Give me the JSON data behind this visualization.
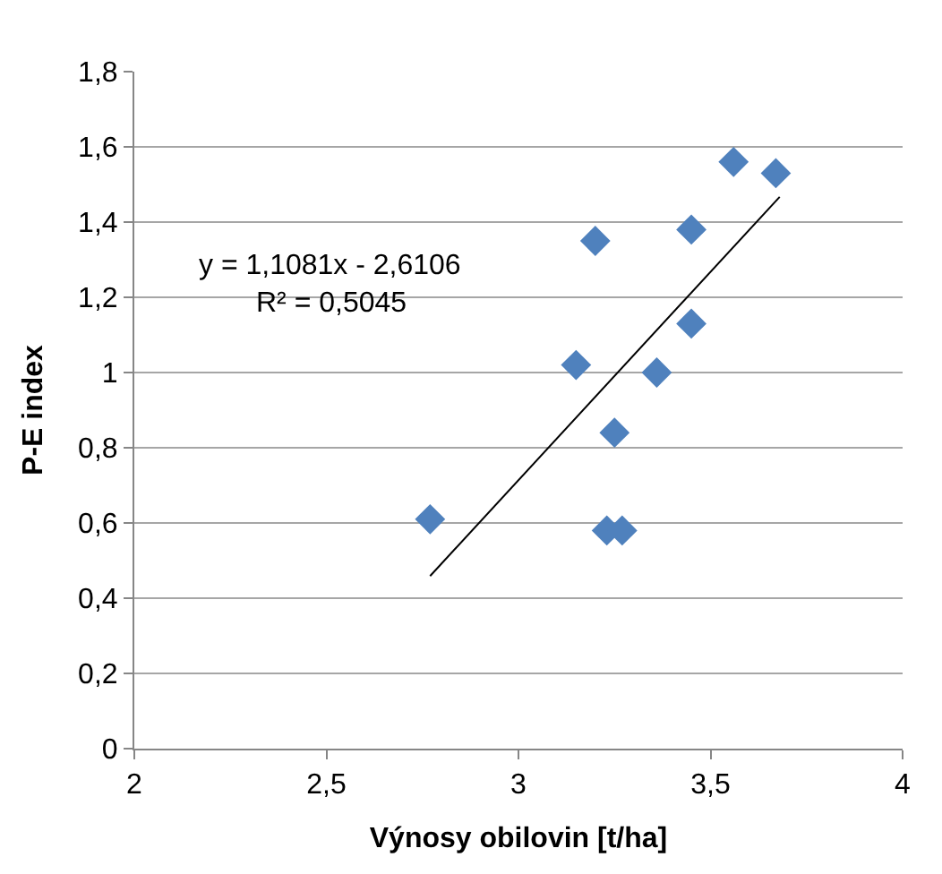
{
  "chart_data": {
    "type": "scatter",
    "xlabel": "Výnosy obilovin [t/ha]",
    "ylabel": "P-E index",
    "xlim": [
      2,
      4
    ],
    "xticks": [
      2,
      {
        "value": 2.5,
        "label": "2,5"
      },
      3,
      {
        "value": 3.5,
        "label": "3,5"
      },
      4
    ],
    "ylim": [
      0,
      1.8
    ],
    "yticks": [
      0,
      {
        "value": 0.2,
        "label": "0,2"
      },
      {
        "value": 0.4,
        "label": "0,4"
      },
      {
        "value": 0.6,
        "label": "0,6"
      },
      {
        "value": 0.8,
        "label": "0,8"
      },
      1,
      {
        "value": 1.2,
        "label": "1,2"
      },
      {
        "value": 1.4,
        "label": "1,4"
      },
      {
        "value": 1.6,
        "label": "1,6"
      },
      {
        "value": 1.8,
        "label": "1,8"
      }
    ],
    "grid": "y",
    "annotations": [
      "y = 1,1081x - 2,6106",
      "R² = 0,5045"
    ],
    "series": [
      {
        "marker": "diamond",
        "color": "#4f81bd",
        "x": [
          2.77,
          3.2,
          3.45,
          3.56,
          3.67,
          3.45,
          3.15,
          3.36,
          3.25,
          3.23,
          3.27
        ],
        "values": [
          0.61,
          1.35,
          1.38,
          1.56,
          1.53,
          1.13,
          1.02,
          1.0,
          0.84,
          0.58,
          0.58
        ]
      },
      {
        "type": "line",
        "marker": "none",
        "color": "#000000",
        "x": [
          2.77,
          3.68
        ],
        "values": [
          0.459,
          1.467
        ]
      }
    ]
  }
}
